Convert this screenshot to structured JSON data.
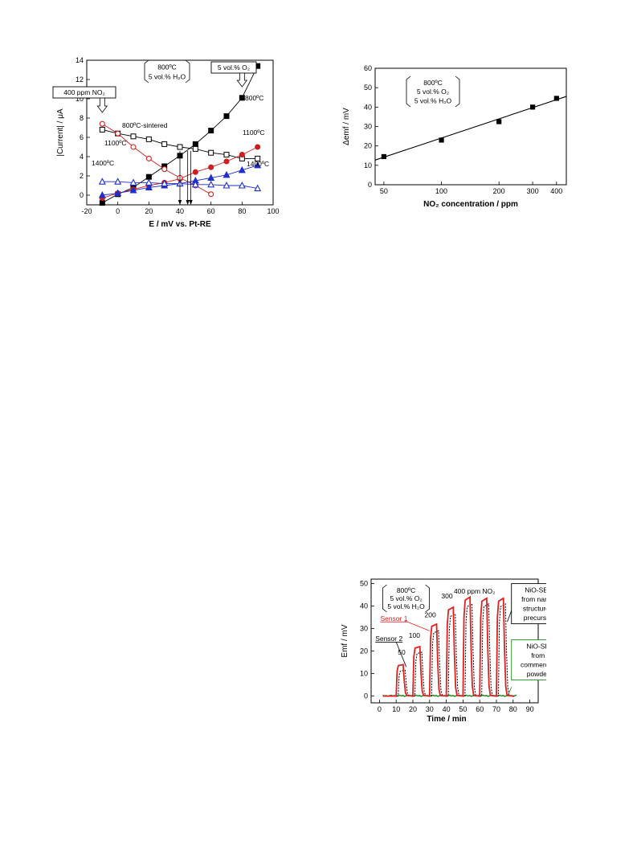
{
  "chart_data": [
    {
      "type": "line",
      "xlabel": "E / mV vs. Pt-RE",
      "ylabel": "|Current| / μA",
      "xlim": [
        -20,
        100
      ],
      "ylim": [
        -1,
        14
      ],
      "xticks": [
        -20,
        0,
        20,
        40,
        60,
        80,
        100
      ],
      "yticks": [
        0,
        2,
        4,
        6,
        8,
        10,
        12,
        14
      ],
      "series": [
        {
          "name": "800ºC",
          "marker": "square",
          "filled": true,
          "color": "#000000",
          "x": [
            -10,
            0,
            10,
            20,
            30,
            40,
            50,
            60,
            70,
            80,
            90
          ],
          "y": [
            -0.8,
            0.1,
            0.8,
            1.9,
            3.0,
            4.1,
            5.3,
            6.7,
            8.2,
            10.1,
            13.4
          ]
        },
        {
          "name": "800ºC-sintered",
          "marker": "square",
          "filled": false,
          "color": "#000000",
          "x": [
            -10,
            0,
            10,
            20,
            30,
            40,
            50,
            60,
            70,
            80,
            90
          ],
          "y": [
            6.8,
            6.4,
            6.1,
            5.8,
            5.3,
            5.0,
            4.8,
            4.4,
            4.2,
            3.8,
            3.8
          ]
        },
        {
          "name": "1100ºC",
          "marker": "circle",
          "filled": true,
          "color": "#cc1f1f",
          "x": [
            -10,
            0,
            10,
            20,
            30,
            40,
            50,
            60,
            70,
            80,
            90
          ],
          "y": [
            -0.3,
            0.2,
            0.6,
            1.0,
            1.3,
            1.7,
            2.4,
            2.9,
            3.5,
            4.2,
            5.0
          ]
        },
        {
          "name": "1100ºC",
          "marker": "circle",
          "filled": false,
          "color": "#cc1f1f",
          "x": [
            -10,
            0,
            10,
            20,
            30,
            40,
            50,
            60
          ],
          "y": [
            7.4,
            6.4,
            5.0,
            3.8,
            2.7,
            1.8,
            1.0,
            0.1
          ]
        },
        {
          "name": "1400ºC",
          "marker": "triangle",
          "filled": true,
          "color": "#1f2fcc",
          "x": [
            -10,
            0,
            10,
            20,
            30,
            40,
            50,
            60,
            70,
            80,
            90
          ],
          "y": [
            0.0,
            0.2,
            0.5,
            0.8,
            1.0,
            1.2,
            1.5,
            1.8,
            2.1,
            2.6,
            3.1
          ]
        },
        {
          "name": "1400ºC",
          "marker": "triangle",
          "filled": false,
          "color": "#1f2fcc",
          "x": [
            -10,
            0,
            10,
            20,
            30,
            40,
            50,
            60,
            70,
            80,
            90
          ],
          "y": [
            1.4,
            1.4,
            1.3,
            1.3,
            1.2,
            1.2,
            1.1,
            1.1,
            1.0,
            1.0,
            0.7
          ]
        }
      ],
      "arrow_x": [
        40,
        45,
        47
      ],
      "annotations": {
        "condition_box": [
          "800ºC",
          "5 vol.% H₂O"
        ],
        "no2_box": "400 ppm NO₂",
        "o2_box": "5 vol.% O₂",
        "label_800": "800ºC",
        "label_800_sintered": "800ºC-sintered",
        "label_1100_upper": "1100ºC",
        "label_1100_lower": "1100ºC",
        "label_1400_left": "1400ºC",
        "label_1400_right": "1400ºC"
      }
    },
    {
      "type": "scatter",
      "xlabel": "NO₂ concentration / ppm",
      "ylabel": "Δemf / mV",
      "log_x": true,
      "xlim": [
        45,
        450
      ],
      "ylim": [
        0,
        60
      ],
      "xticks": [
        50,
        100,
        200,
        300,
        400
      ],
      "yticks": [
        0,
        10,
        20,
        30,
        40,
        50,
        60
      ],
      "points": {
        "x": [
          50,
          100,
          200,
          300,
          400
        ],
        "y": [
          14.5,
          23,
          32.5,
          40,
          44.5
        ]
      },
      "fit_line": {
        "x": [
          45,
          450
        ],
        "y": [
          12.7,
          45.5
        ]
      },
      "annotations": {
        "condition_box": [
          "800ºC",
          "5 vol.% O₂",
          "5 vol.% H₂O"
        ]
      }
    },
    {
      "type": "line",
      "xlabel": "Time / min",
      "ylabel": "Emf / mV",
      "xlim": [
        -5,
        95
      ],
      "ylim": [
        -3,
        52
      ],
      "xticks": [
        0,
        10,
        20,
        30,
        40,
        50,
        60,
        70,
        80,
        90
      ],
      "yticks": [
        0,
        10,
        20,
        30,
        40,
        50
      ],
      "pulses": [
        {
          "label": "50",
          "start": 10,
          "sensor1_peak": 14,
          "sensor2_peak": 11.5
        },
        {
          "label": "100",
          "start": 20,
          "sensor1_peak": 22,
          "sensor2_peak": 19.5
        },
        {
          "label": "200",
          "start": 30,
          "sensor1_peak": 32,
          "sensor2_peak": 29
        },
        {
          "label": "300",
          "start": 40,
          "sensor1_peak": 39.5,
          "sensor2_peak": 36.5
        },
        {
          "label": "",
          "start": 50,
          "sensor1_peak": 44,
          "sensor2_peak": 41
        },
        {
          "label": "",
          "start": 60,
          "sensor1_peak": 43.5,
          "sensor2_peak": 41
        },
        {
          "label": "",
          "start": 70,
          "sensor1_peak": 43.5,
          "sensor2_peak": 41
        }
      ],
      "series": [
        {
          "name": "Sensor 1",
          "color": "#e02020"
        },
        {
          "name": "Sensor 2",
          "color": "#000000"
        },
        {
          "name": "NiO-SE from commercial powder",
          "color": "#1a8a1a"
        }
      ],
      "annotations": {
        "condition_box": [
          "800ºC",
          "5 vol.% O₂",
          "5 vol.% H₂O"
        ],
        "top_label": "400 ppm NO₂",
        "sensor1_label": "Sensor 1",
        "sensor2_label": "Sensor 2",
        "nano_box": [
          "NiO-SEs",
          "from nano-",
          "structured",
          "precursor"
        ],
        "commercial_box": [
          "NiO-SE",
          "from",
          "commercial",
          "powder"
        ]
      }
    }
  ]
}
